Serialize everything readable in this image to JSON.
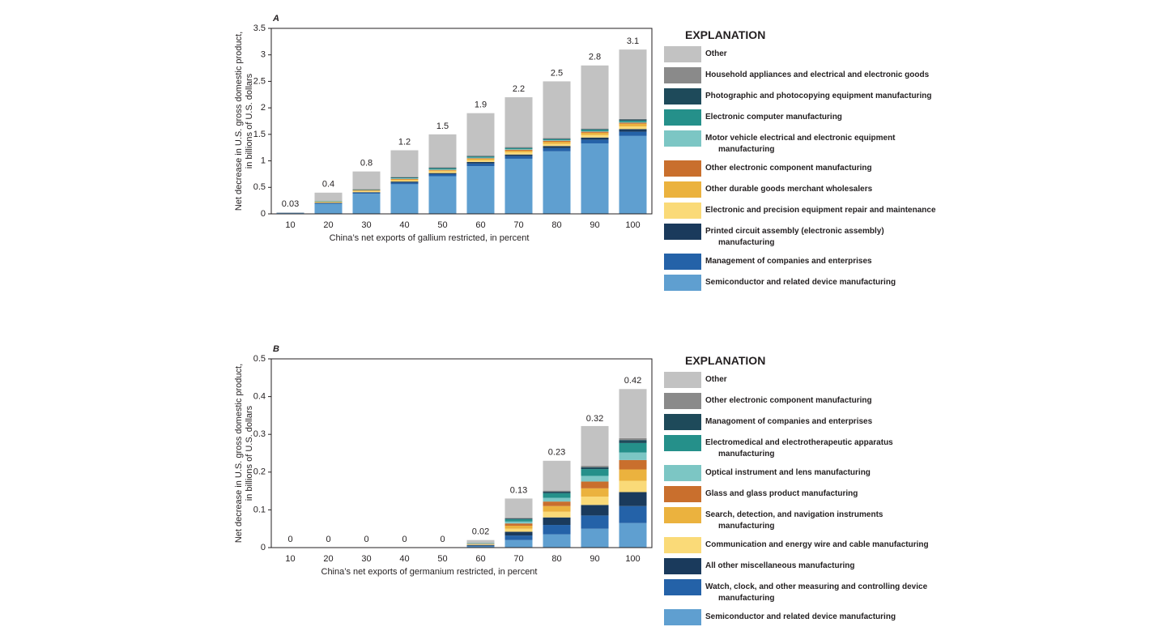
{
  "chart_data": [
    {
      "type": "bar",
      "stacked": true,
      "panel_label": "A",
      "y_label": [
        "Net decrease in U.S. gross domestic product,",
        "in billions of U.S. dollars"
      ],
      "x_label": "China’s net exports of gallium restricted, in percent",
      "legend_title": "EXPLANATION",
      "categories": [
        10,
        20,
        30,
        40,
        50,
        60,
        70,
        80,
        90,
        100
      ],
      "totals": [
        0.03,
        0.4,
        0.8,
        1.2,
        1.5,
        1.9,
        2.2,
        2.5,
        2.8,
        3.1
      ],
      "ylim": [
        0,
        3.5
      ],
      "yticks": [
        0,
        0.5,
        1,
        1.5,
        2,
        2.5,
        3,
        3.5
      ],
      "series": [
        {
          "name": "Semiconductor and related device manufacturing",
          "color": "#5f9fd0",
          "values": [
            0.02,
            0.19,
            0.38,
            0.56,
            0.71,
            0.9,
            1.04,
            1.18,
            1.33,
            1.47
          ]
        },
        {
          "name": "Management of companies and enterprises",
          "color": "#2462a8",
          "values": [
            0,
            0.01,
            0.02,
            0.03,
            0.04,
            0.05,
            0.05,
            0.06,
            0.07,
            0.08
          ]
        },
        {
          "name": "Printed circuit assembly (electronic assembly) manufacturing",
          "color": "#1a3a5c",
          "values": [
            0,
            0.01,
            0.01,
            0.02,
            0.02,
            0.03,
            0.03,
            0.04,
            0.04,
            0.05
          ]
        },
        {
          "name": "Electronic and precision equipment repair and maintenance",
          "color": "#fada78",
          "values": [
            0,
            0.01,
            0.02,
            0.02,
            0.03,
            0.03,
            0.04,
            0.04,
            0.05,
            0.05
          ]
        },
        {
          "name": "Other durable goods merchant wholesalers",
          "color": "#ebb23e",
          "values": [
            0,
            0.01,
            0.01,
            0.02,
            0.02,
            0.03,
            0.03,
            0.04,
            0.04,
            0.05
          ]
        },
        {
          "name": "Other electronic component manufacturing",
          "color": "#c96f2d",
          "values": [
            0,
            0,
            0.01,
            0.01,
            0.01,
            0.01,
            0.02,
            0.02,
            0.02,
            0.02
          ]
        },
        {
          "name": "Motor vehicle electrical and electronic equipment manufacturing",
          "color": "#7cc6c4",
          "values": [
            0,
            0,
            0,
            0.01,
            0.01,
            0.01,
            0.01,
            0.01,
            0.01,
            0.01
          ]
        },
        {
          "name": "Electronic computer manufacturing",
          "color": "#25908a",
          "values": [
            0,
            0.01,
            0.01,
            0.01,
            0.02,
            0.02,
            0.02,
            0.02,
            0.03,
            0.03
          ]
        },
        {
          "name": "Photographic and photocopying equipment manufacturing",
          "color": "#1e4a5a",
          "values": [
            0,
            0,
            0,
            0.01,
            0.01,
            0.01,
            0.01,
            0.01,
            0.01,
            0.02
          ]
        },
        {
          "name": "Household appliances and electrical and electronic goods",
          "color": "#8a8a8a",
          "values": [
            0,
            0,
            0.01,
            0.01,
            0.01,
            0.01,
            0.01,
            0.01,
            0.01,
            0.01
          ]
        },
        {
          "name": "Other",
          "color": "#c2c2c2",
          "values": [
            0.01,
            0.16,
            0.33,
            0.5,
            0.62,
            0.8,
            0.94,
            1.07,
            1.19,
            1.31
          ]
        }
      ]
    },
    {
      "type": "bar",
      "stacked": true,
      "panel_label": "B",
      "y_label": [
        "Net decrease in U.S. gross domestic product,",
        "in billions of U.S. dollars"
      ],
      "x_label": "China’s net exports of germanium restricted, in percent",
      "legend_title": "EXPLANATION",
      "categories": [
        10,
        20,
        30,
        40,
        50,
        60,
        70,
        80,
        90,
        100
      ],
      "totals": [
        0,
        0,
        0,
        0,
        0,
        0.02,
        0.13,
        0.23,
        0.32,
        0.42
      ],
      "ylim": [
        0,
        0.5
      ],
      "yticks": [
        0,
        0.1,
        0.2,
        0.3,
        0.4,
        0.5
      ],
      "series": [
        {
          "name": "Semiconductor and related device manufacturing",
          "color": "#5f9fd0",
          "values": [
            0,
            0,
            0,
            0,
            0,
            0.003,
            0.02,
            0.035,
            0.05,
            0.065
          ]
        },
        {
          "name": "Watch, clock, and other measuring and controlling device manufacturing",
          "color": "#2462a8",
          "values": [
            0,
            0,
            0,
            0,
            0,
            0.002,
            0.012,
            0.025,
            0.035,
            0.045
          ]
        },
        {
          "name": "All other miscellaneous manufacturing",
          "color": "#1a3a5c",
          "values": [
            0,
            0,
            0,
            0,
            0,
            0.002,
            0.01,
            0.02,
            0.028,
            0.037
          ]
        },
        {
          "name": "Communication and energy wire and cable manufacturing",
          "color": "#fada78",
          "values": [
            0,
            0,
            0,
            0,
            0,
            0.001,
            0.008,
            0.015,
            0.022,
            0.03
          ]
        },
        {
          "name": "Search, detection, and navigation instruments manufacturing",
          "color": "#ebb23e",
          "values": [
            0,
            0,
            0,
            0,
            0,
            0.001,
            0.008,
            0.015,
            0.022,
            0.03
          ]
        },
        {
          "name": "Glass and glass product manufacturing",
          "color": "#c96f2d",
          "values": [
            0,
            0,
            0,
            0,
            0,
            0.001,
            0.006,
            0.012,
            0.018,
            0.025
          ]
        },
        {
          "name": "Optical instrument and lens manufacturing",
          "color": "#7cc6c4",
          "values": [
            0,
            0,
            0,
            0,
            0,
            0.001,
            0.005,
            0.01,
            0.015,
            0.02
          ]
        },
        {
          "name": "Electromedical and electrotherapeutic apparatus manufacturing",
          "color": "#25908a",
          "values": [
            0,
            0,
            0,
            0,
            0,
            0.001,
            0.006,
            0.012,
            0.018,
            0.025
          ]
        },
        {
          "name": "Managoment of companies and enterprises",
          "color": "#1e4a5a",
          "values": [
            0,
            0,
            0,
            0,
            0,
            0,
            0.002,
            0.004,
            0.005,
            0.008
          ]
        },
        {
          "name": "Other electronic component manufacturing",
          "color": "#8a8a8a",
          "values": [
            0,
            0,
            0,
            0,
            0,
            0,
            0.002,
            0.003,
            0.004,
            0.005
          ]
        },
        {
          "name": "Other",
          "color": "#c2c2c2",
          "values": [
            0,
            0,
            0,
            0,
            0,
            0.008,
            0.051,
            0.079,
            0.105,
            0.13
          ]
        }
      ]
    }
  ]
}
